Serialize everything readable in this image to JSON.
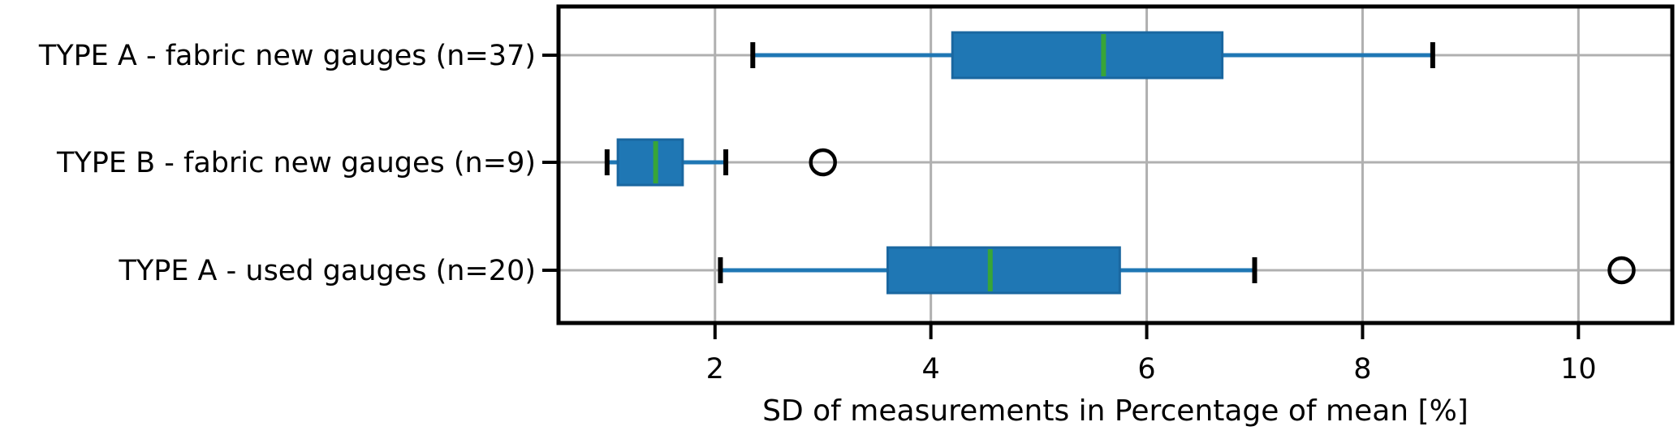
{
  "chart_data": {
    "type": "boxplot",
    "orientation": "horizontal",
    "title": "",
    "xlabel": "SD of measurements in Percentage of mean [%]",
    "ylabel": "",
    "xlim": [
      0.55,
      10.87
    ],
    "xticks": [
      2,
      4,
      6,
      8,
      10
    ],
    "xtick_labels": [
      "2",
      "4",
      "6",
      "8",
      "10"
    ],
    "grid": true,
    "legend": "none",
    "categories": [
      "TYPE A - fabric new gauges (n=37)",
      "TYPE B - fabric new gauges (n=9)",
      "TYPE A - used gauges (n=20)"
    ],
    "boxes": [
      {
        "label": "TYPE A - fabric new gauges (n=37)",
        "whisker_low": 2.35,
        "q1": 4.2,
        "median": 5.6,
        "q3": 6.7,
        "whisker_high": 8.65,
        "outliers": []
      },
      {
        "label": "TYPE B - fabric new gauges (n=9)",
        "whisker_low": 1.0,
        "q1": 1.1,
        "median": 1.45,
        "q3": 1.7,
        "whisker_high": 2.1,
        "outliers": [
          3.0
        ]
      },
      {
        "label": "TYPE A - used gauges (n=20)",
        "whisker_low": 2.05,
        "q1": 3.6,
        "median": 4.55,
        "q3": 5.75,
        "whisker_high": 7.0,
        "outliers": [
          10.4
        ]
      }
    ],
    "colors": {
      "box_fill": "#1f77b4",
      "box_edge": "#1a67a0",
      "whisker": "#1f77b4",
      "cap": "#000000",
      "median": "#38a538",
      "outlier_edge": "#000000",
      "grid": "#b0b0b0",
      "spine": "#000000",
      "text": "#000000",
      "background": "#ffffff"
    }
  }
}
